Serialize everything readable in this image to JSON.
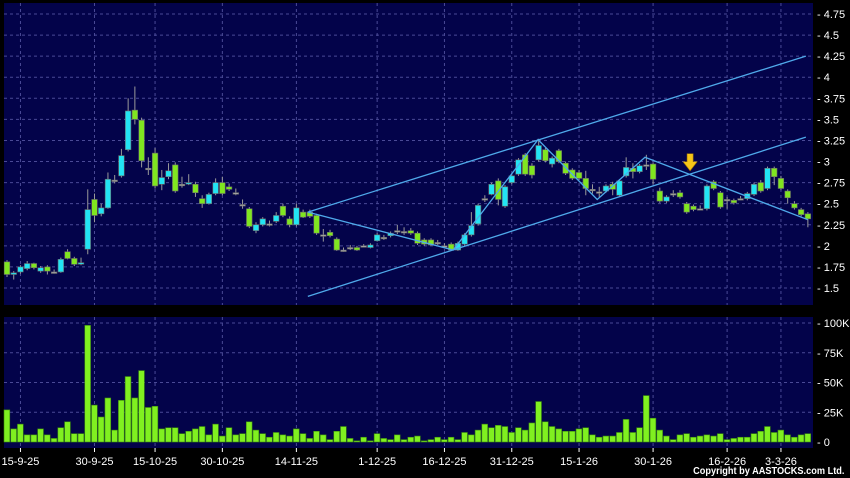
{
  "chart_data": [
    {
      "type": "candlestick",
      "panel": "price",
      "ylim": [
        1.5,
        4.75
      ],
      "yticks": [
        "1.5",
        "1.75",
        "2",
        "2.25",
        "2.5",
        "2.75",
        "3",
        "3.25",
        "3.5",
        "3.75",
        "4",
        "4.25",
        "4.5",
        "4.75"
      ],
      "grid": true,
      "colors": {
        "up": "#22e4f4",
        "down": "#80e620",
        "flat": "#a8a8a8",
        "background": "#03034a",
        "grid": "#4a4a96",
        "trendline": "#4fa9ea",
        "arrow": "#f5c518"
      },
      "ohlc": [
        [
          1.81,
          1.83,
          1.63,
          1.66
        ],
        [
          1.66,
          1.7,
          1.6,
          1.68
        ],
        [
          1.69,
          1.77,
          1.67,
          1.75
        ],
        [
          1.73,
          1.82,
          1.71,
          1.79
        ],
        [
          1.79,
          1.8,
          1.72,
          1.74
        ],
        [
          1.7,
          1.76,
          1.68,
          1.74
        ],
        [
          1.75,
          1.77,
          1.66,
          1.7
        ],
        [
          1.69,
          1.72,
          1.67,
          1.69
        ],
        [
          1.69,
          1.86,
          1.68,
          1.84
        ],
        [
          1.93,
          1.96,
          1.84,
          1.85
        ],
        [
          1.85,
          1.87,
          1.76,
          1.78
        ],
        [
          1.79,
          1.86,
          1.77,
          1.8
        ],
        [
          1.96,
          2.67,
          1.9,
          2.43
        ],
        [
          2.55,
          2.62,
          2.28,
          2.36
        ],
        [
          2.38,
          2.5,
          2.35,
          2.45
        ],
        [
          2.45,
          2.87,
          2.44,
          2.79
        ],
        [
          2.78,
          2.84,
          2.74,
          2.78
        ],
        [
          2.83,
          3.15,
          2.81,
          3.07
        ],
        [
          3.14,
          3.75,
          3.12,
          3.6
        ],
        [
          3.61,
          3.89,
          3.44,
          3.5
        ],
        [
          3.49,
          3.52,
          2.93,
          3.01
        ],
        [
          2.92,
          3.05,
          2.84,
          2.92
        ],
        [
          3.1,
          3.16,
          2.68,
          2.71
        ],
        [
          2.73,
          2.9,
          2.66,
          2.81
        ],
        [
          2.82,
          2.98,
          2.79,
          2.89
        ],
        [
          2.96,
          2.99,
          2.63,
          2.65
        ],
        [
          2.73,
          2.82,
          2.69,
          2.73
        ],
        [
          2.74,
          2.85,
          2.72,
          2.75
        ],
        [
          2.73,
          2.76,
          2.58,
          2.63
        ],
        [
          2.56,
          2.6,
          2.45,
          2.5
        ],
        [
          2.5,
          2.63,
          2.49,
          2.61
        ],
        [
          2.62,
          2.8,
          2.6,
          2.75
        ],
        [
          2.75,
          2.82,
          2.6,
          2.62
        ],
        [
          2.7,
          2.74,
          2.65,
          2.67
        ],
        [
          2.63,
          2.68,
          2.6,
          2.63
        ],
        [
          2.49,
          2.55,
          2.44,
          2.49
        ],
        [
          2.44,
          2.46,
          2.21,
          2.23
        ],
        [
          2.18,
          2.28,
          2.15,
          2.25
        ],
        [
          2.25,
          2.34,
          2.23,
          2.32
        ],
        [
          2.26,
          2.3,
          2.23,
          2.26
        ],
        [
          2.29,
          2.4,
          2.27,
          2.36
        ],
        [
          2.47,
          2.5,
          2.34,
          2.36
        ],
        [
          2.32,
          2.35,
          2.22,
          2.25
        ],
        [
          2.25,
          2.5,
          2.23,
          2.45
        ],
        [
          2.4,
          2.43,
          2.33,
          2.34
        ],
        [
          2.4,
          2.43,
          2.33,
          2.35
        ],
        [
          2.36,
          2.38,
          2.13,
          2.15
        ],
        [
          2.13,
          2.2,
          2.05,
          2.13
        ],
        [
          2.16,
          2.19,
          2.1,
          2.12
        ],
        [
          2.08,
          2.1,
          1.94,
          1.95
        ],
        [
          1.95,
          1.98,
          1.93,
          1.95
        ],
        [
          1.98,
          2.01,
          1.95,
          1.98
        ],
        [
          1.98,
          2.0,
          1.94,
          1.95
        ],
        [
          2.0,
          2.02,
          1.98,
          2.0
        ],
        [
          1.98,
          2.03,
          1.97,
          2.01
        ],
        [
          2.06,
          2.15,
          2.05,
          2.13
        ],
        [
          2.1,
          2.13,
          2.07,
          2.1
        ],
        [
          2.12,
          2.17,
          2.1,
          2.15
        ],
        [
          2.18,
          2.25,
          2.14,
          2.18
        ],
        [
          2.17,
          2.22,
          2.13,
          2.17
        ],
        [
          2.18,
          2.21,
          2.13,
          2.15
        ],
        [
          2.15,
          2.17,
          2.01,
          2.03
        ],
        [
          2.07,
          2.09,
          2.0,
          2.02
        ],
        [
          2.07,
          2.09,
          2.0,
          2.01
        ],
        [
          2.04,
          2.07,
          2.01,
          2.04
        ],
        [
          2.0,
          2.03,
          1.97,
          2.0
        ],
        [
          2.02,
          2.04,
          1.94,
          1.95
        ],
        [
          1.95,
          2.05,
          1.94,
          2.03
        ],
        [
          2.02,
          2.15,
          2.0,
          2.13
        ],
        [
          2.13,
          2.4,
          2.11,
          2.24
        ],
        [
          2.26,
          2.5,
          2.24,
          2.48
        ],
        [
          2.56,
          2.6,
          2.52,
          2.56
        ],
        [
          2.61,
          2.75,
          2.6,
          2.73
        ],
        [
          2.77,
          2.8,
          2.48,
          2.55
        ],
        [
          2.47,
          2.72,
          2.45,
          2.7
        ],
        [
          2.75,
          2.85,
          2.73,
          2.83
        ],
        [
          2.85,
          3.04,
          2.83,
          3.02
        ],
        [
          3.08,
          3.1,
          2.83,
          2.85
        ],
        [
          2.95,
          2.98,
          2.8,
          2.84
        ],
        [
          3.02,
          3.27,
          3.0,
          3.19
        ],
        [
          3.14,
          3.16,
          2.99,
          3.01
        ],
        [
          2.97,
          3.06,
          2.93,
          3.04
        ],
        [
          3.13,
          3.15,
          2.98,
          3.0
        ],
        [
          2.98,
          3.0,
          2.84,
          2.86
        ],
        [
          2.9,
          2.92,
          2.78,
          2.8
        ],
        [
          2.87,
          2.9,
          2.78,
          2.8
        ],
        [
          2.8,
          2.89,
          2.6,
          2.68
        ],
        [
          2.67,
          2.73,
          2.62,
          2.67
        ],
        [
          2.64,
          2.7,
          2.58,
          2.64
        ],
        [
          2.65,
          2.73,
          2.63,
          2.71
        ],
        [
          2.73,
          2.76,
          2.6,
          2.67
        ],
        [
          2.6,
          2.79,
          2.58,
          2.77
        ],
        [
          2.83,
          3.05,
          2.81,
          2.93
        ],
        [
          2.92,
          2.98,
          2.8,
          2.88
        ],
        [
          2.88,
          2.97,
          2.86,
          2.95
        ],
        [
          2.96,
          3.08,
          2.9,
          2.96
        ],
        [
          2.97,
          2.99,
          2.73,
          2.79
        ],
        [
          2.65,
          2.69,
          2.51,
          2.53
        ],
        [
          2.53,
          2.6,
          2.51,
          2.58
        ],
        [
          2.62,
          2.66,
          2.58,
          2.62
        ],
        [
          2.63,
          2.66,
          2.56,
          2.58
        ],
        [
          2.5,
          2.52,
          2.38,
          2.4
        ],
        [
          2.47,
          2.49,
          2.41,
          2.43
        ],
        [
          2.44,
          2.48,
          2.42,
          2.44
        ],
        [
          2.44,
          2.73,
          2.42,
          2.71
        ],
        [
          2.76,
          2.78,
          2.66,
          2.68
        ],
        [
          2.63,
          2.65,
          2.44,
          2.46
        ],
        [
          2.55,
          2.58,
          2.44,
          2.55
        ],
        [
          2.54,
          2.56,
          2.49,
          2.51
        ],
        [
          2.56,
          2.59,
          2.54,
          2.56
        ],
        [
          2.56,
          2.64,
          2.54,
          2.62
        ],
        [
          2.61,
          2.75,
          2.59,
          2.73
        ],
        [
          2.75,
          2.78,
          2.63,
          2.65
        ],
        [
          2.68,
          2.94,
          2.66,
          2.92
        ],
        [
          2.92,
          2.94,
          2.72,
          2.82
        ],
        [
          2.8,
          2.83,
          2.66,
          2.68
        ],
        [
          2.65,
          2.67,
          2.5,
          2.57
        ],
        [
          2.5,
          2.53,
          2.43,
          2.45
        ],
        [
          2.43,
          2.45,
          2.35,
          2.37
        ],
        [
          2.38,
          2.4,
          2.22,
          2.32
        ]
      ],
      "trendlines": [
        {
          "kind": "channel-upper",
          "points": [
            [
              44.7,
              2.4
            ],
            [
              118.7,
              4.25
            ]
          ]
        },
        {
          "kind": "channel-lower",
          "points": [
            [
              44.7,
              1.4
            ],
            [
              118.7,
              3.29
            ]
          ]
        },
        {
          "kind": "zigzag",
          "points": [
            [
              44.7,
              2.4
            ],
            [
              66.3,
              1.95
            ],
            [
              78.9,
              3.26
            ],
            [
              87.7,
              2.55
            ],
            [
              94.8,
              3.05
            ],
            [
              119,
              2.31
            ]
          ]
        }
      ],
      "annotations": [
        {
          "kind": "down-arrow",
          "at": [
            101.5,
            2.95
          ]
        }
      ]
    },
    {
      "type": "bar",
      "panel": "volume",
      "ylim": [
        0,
        100000
      ],
      "yticks": [
        "0",
        "25K",
        "50K",
        "75K",
        "100K"
      ],
      "grid": true,
      "color": "#80f020",
      "values_k": [
        27,
        11,
        15,
        6,
        6,
        11,
        6,
        3,
        12,
        17,
        7,
        7,
        98,
        31,
        21,
        37,
        10,
        35,
        55,
        37,
        60,
        29,
        30,
        11,
        12,
        12,
        7,
        9,
        11,
        13,
        6,
        15,
        5,
        12,
        6,
        7,
        17,
        10,
        7,
        4,
        8,
        6,
        5,
        11,
        7,
        3,
        9,
        6,
        2,
        9,
        13,
        3,
        1,
        4,
        1,
        7,
        3,
        2,
        6,
        2,
        4,
        5,
        1,
        2,
        4,
        2,
        4,
        2,
        8,
        6,
        10,
        15,
        12,
        14,
        13,
        8,
        12,
        10,
        16,
        34,
        17,
        13,
        11,
        9,
        9,
        11,
        12,
        6,
        4,
        5,
        5,
        8,
        19,
        8,
        12,
        39,
        20,
        10,
        5,
        2,
        6,
        7,
        4,
        5,
        6,
        5,
        7,
        2,
        3,
        4,
        4,
        7,
        9,
        13,
        8,
        10,
        6,
        4,
        6,
        7
      ]
    }
  ],
  "x_axis": {
    "ticks": [
      {
        "label": "15-9-25",
        "index": 2
      },
      {
        "label": "30-9-25",
        "index": 13
      },
      {
        "label": "15-10-25",
        "index": 22
      },
      {
        "label": "30-10-25",
        "index": 32
      },
      {
        "label": "14-11-25",
        "index": 43
      },
      {
        "label": "1-12-25",
        "index": 55
      },
      {
        "label": "16-12-25",
        "index": 65
      },
      {
        "label": "31-12-25",
        "index": 75
      },
      {
        "label": "15-1-26",
        "index": 85
      },
      {
        "label": "30-1-26",
        "index": 96
      },
      {
        "label": "16-2-26",
        "index": 107
      },
      {
        "label": "3-3-26",
        "index": 115
      }
    ]
  },
  "copyright": "Copyright by AASTOCKS.com Ltd."
}
